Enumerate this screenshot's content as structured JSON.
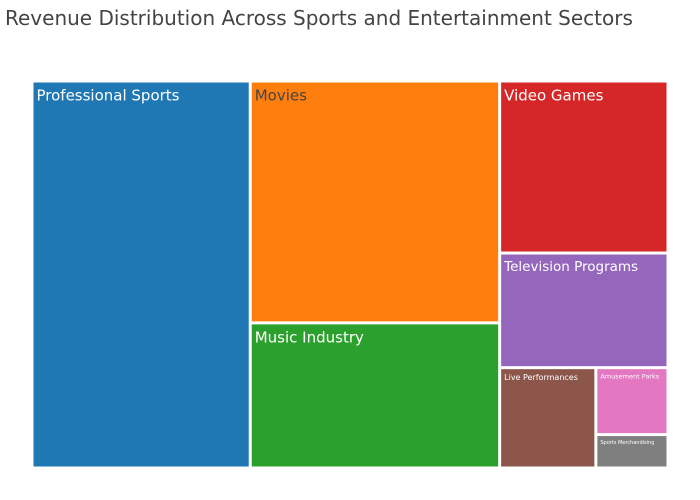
{
  "chart_data": {
    "type": "treemap",
    "title": "Revenue Distribution Across Sports and Entertainment Sectors",
    "categories": [
      "Professional Sports",
      "Movies",
      "Music Industry",
      "Video Games",
      "Television Programs",
      "Live Performances",
      "Amusement Parks",
      "Sports Merchandising"
    ],
    "values": [
      35,
      25,
      15,
      12,
      8,
      4,
      2,
      1
    ],
    "colors": [
      "#1f77b4",
      "#ff7f0e",
      "#2ca02c",
      "#d62728",
      "#9467bd",
      "#8c564b",
      "#e377c2",
      "#7f7f7f"
    ],
    "label_colors": [
      "#ffffff",
      "#444444",
      "#ffffff",
      "#ffffff",
      "#ffffff",
      "#ffffff",
      "#ffffff",
      "#ffffff"
    ]
  }
}
